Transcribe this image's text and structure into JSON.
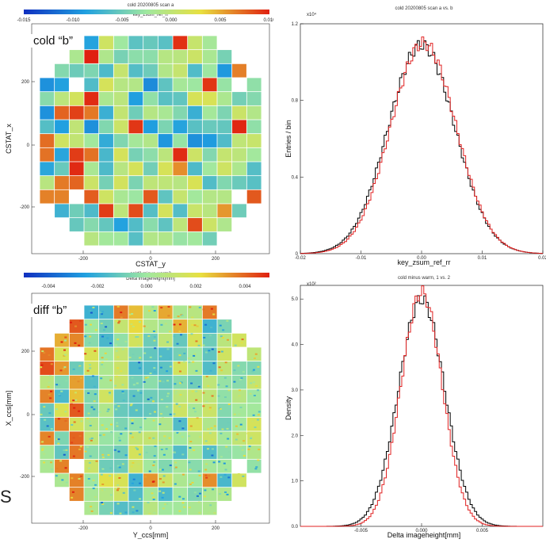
{
  "chart_data": [
    {
      "type": "heatmap",
      "title": "cold 20200805 scan a",
      "colorbar_label": "key_zsum_ref_rr",
      "colorbar_ticks": [
        "-0.015",
        "-0.010",
        "-0.005",
        "0.000",
        "0.005",
        "0.010"
      ],
      "colorbar_range": [
        -0.015,
        0.01
      ],
      "xlabel": "CSTAT_y",
      "ylabel": "CSTAT_x",
      "x_ticks": [
        "-200",
        "0",
        "200"
      ],
      "y_ticks": [
        "200",
        "0",
        "-200"
      ],
      "tag": "cold “b”"
    },
    {
      "type": "line",
      "title": "cold 20200805 scan a vs. b",
      "xlabel": "key_zsum_ref_rr",
      "ylabel": "Entries / bin",
      "y_multiplier": "x10⁴",
      "xlim": [
        -0.02,
        0.02
      ],
      "ylim": [
        0,
        1.2
      ],
      "x_ticks": [
        "-0.02",
        "-0.01",
        "0.00",
        "0.01",
        "0.02"
      ],
      "y_ticks": [
        "0",
        "0.4",
        "0.8",
        "1.2"
      ],
      "series": [
        {
          "color": "#000000",
          "mean": 0.0,
          "sigma": 0.0055,
          "peak": 1.09
        },
        {
          "color": "#e02020",
          "mean": 0.0003,
          "sigma": 0.0054,
          "peak": 1.1
        }
      ]
    },
    {
      "type": "heatmap",
      "title": "cold2 minus warm2",
      "colorbar_label": "Delta imageheight[mm]",
      "colorbar_ticks": [
        "-0.004",
        "-0.002",
        "0.000",
        "0.002",
        "0.004"
      ],
      "colorbar_range": [
        -0.005,
        0.005
      ],
      "xlabel": "Y_ccs[mm]",
      "ylabel": "X_ccs[mm]",
      "x_ticks": [
        "-200",
        "0",
        "200"
      ],
      "y_ticks": [
        "200",
        "0",
        "-200"
      ],
      "tag": "diff “b”"
    },
    {
      "type": "line",
      "title": "cold minus warm, 1 vs. 2",
      "xlabel": "Delta imageheight[mm]",
      "ylabel": "Density",
      "y_multiplier": "x10²",
      "xlim": [
        -0.01,
        0.01
      ],
      "ylim": [
        0,
        5.3
      ],
      "x_ticks": [
        "-0.005",
        "0.000",
        "0.005"
      ],
      "y_ticks": [
        "0.0",
        "1.0",
        "2.0",
        "3.0",
        "4.0",
        "5.0"
      ],
      "series": [
        {
          "color": "#000000",
          "mean": 0.0,
          "sigma": 0.0019,
          "peak": 5.0
        },
        {
          "color": "#e02020",
          "mean": 0.0,
          "sigma": 0.0017,
          "peak": 5.15
        }
      ]
    }
  ],
  "edge_letter": "S"
}
